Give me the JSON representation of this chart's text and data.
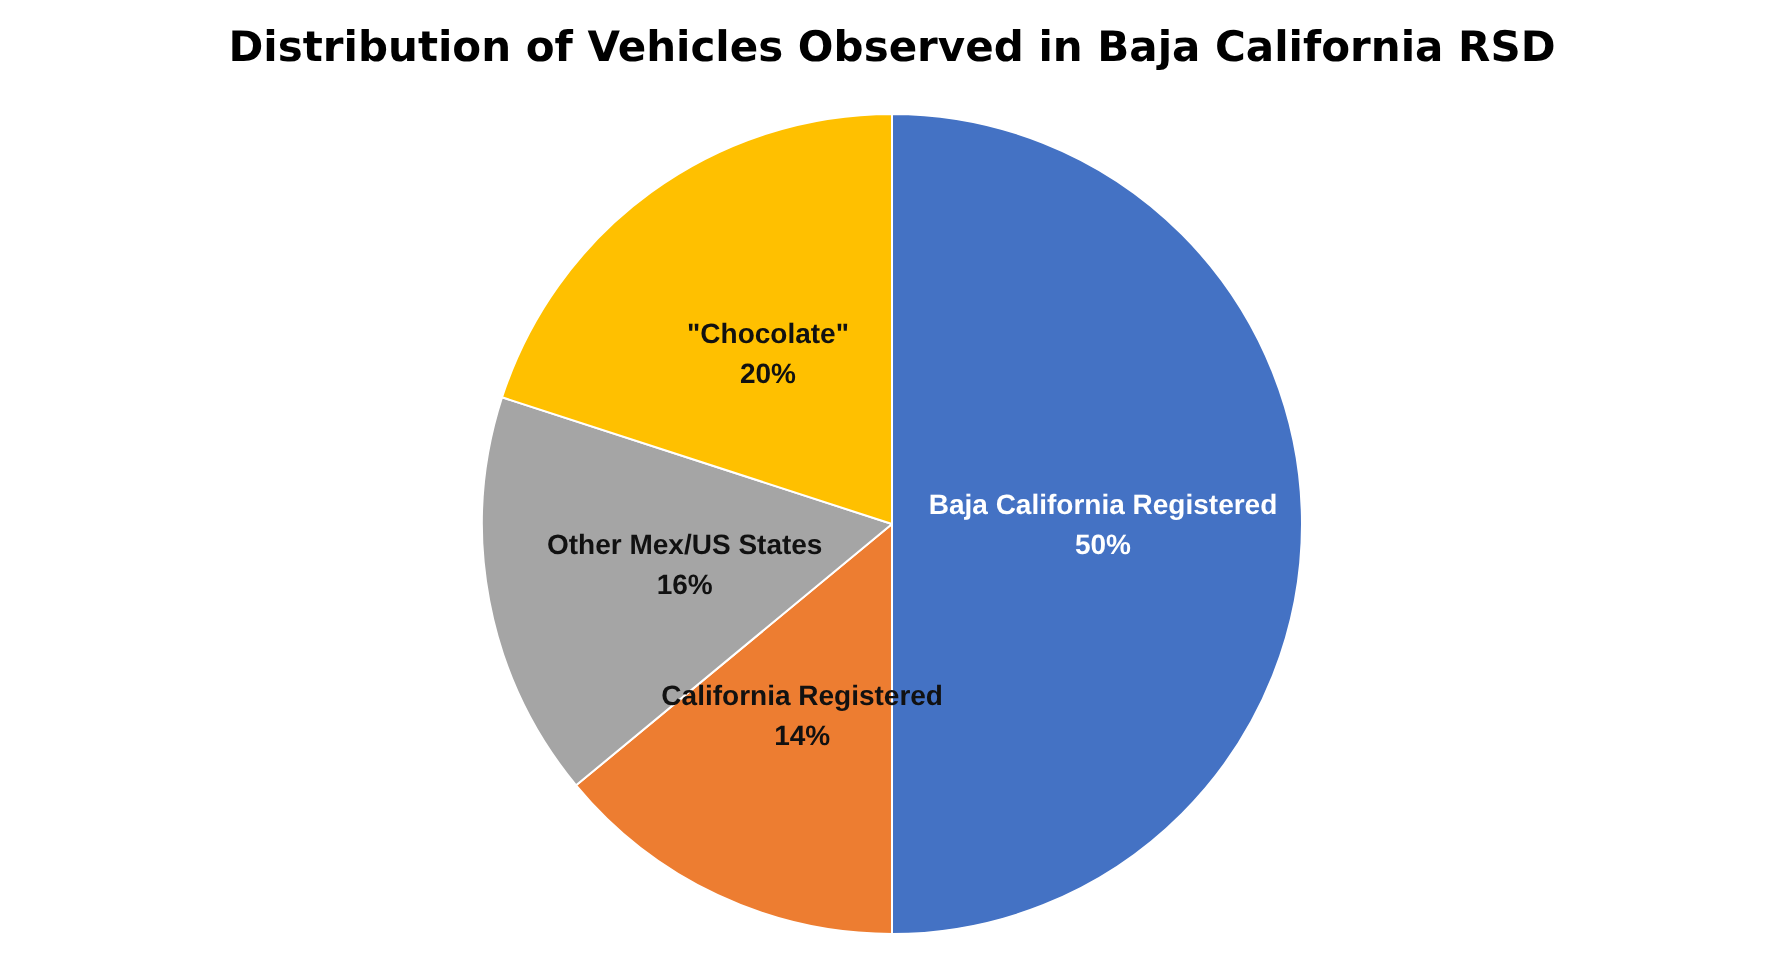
{
  "chart_data": {
    "type": "pie",
    "title": "Distribution of Vehicles Observed in Baja California RSD",
    "categories": [
      "Baja California Registered",
      "California Registered",
      "Other Mex/US States",
      "\"Chocolate\""
    ],
    "values": [
      50,
      14,
      16,
      20
    ],
    "value_labels": [
      "50%",
      "14%",
      "16%",
      "20%"
    ],
    "colors": [
      "#4472c4",
      "#ed7d31",
      "#a5a5a5",
      "#ffc000"
    ],
    "legend": false
  }
}
